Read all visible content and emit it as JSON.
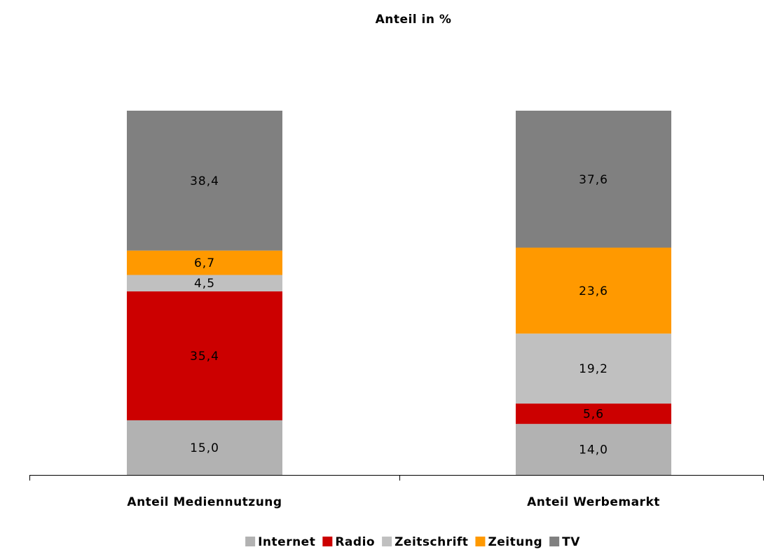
{
  "chart_data": {
    "type": "stacked_bar",
    "title": "Anteil in %",
    "categories": [
      "Anteil Mediennutzung",
      "Anteil Werbemarkt"
    ],
    "series": [
      {
        "name": "Internet",
        "color": "#b2b2b2",
        "values": [
          15.0,
          14.0
        ],
        "value_labels": [
          "15,0",
          "14,0"
        ]
      },
      {
        "name": "Radio",
        "color": "#cc0000",
        "values": [
          35.4,
          5.6
        ],
        "value_labels": [
          "35,4",
          "5,6"
        ]
      },
      {
        "name": "Zeitschrift",
        "color": "#c0c0c0",
        "values": [
          4.5,
          19.2
        ],
        "value_labels": [
          "4,5",
          "19,2"
        ]
      },
      {
        "name": "Zeitung",
        "color": "#ff9900",
        "values": [
          6.7,
          23.6
        ],
        "value_labels": [
          "6,7",
          "23,6"
        ]
      },
      {
        "name": "TV",
        "color": "#808080",
        "values": [
          38.4,
          37.6
        ],
        "value_labels": [
          "38,4",
          "37,6"
        ]
      }
    ],
    "legend": "bottom"
  }
}
